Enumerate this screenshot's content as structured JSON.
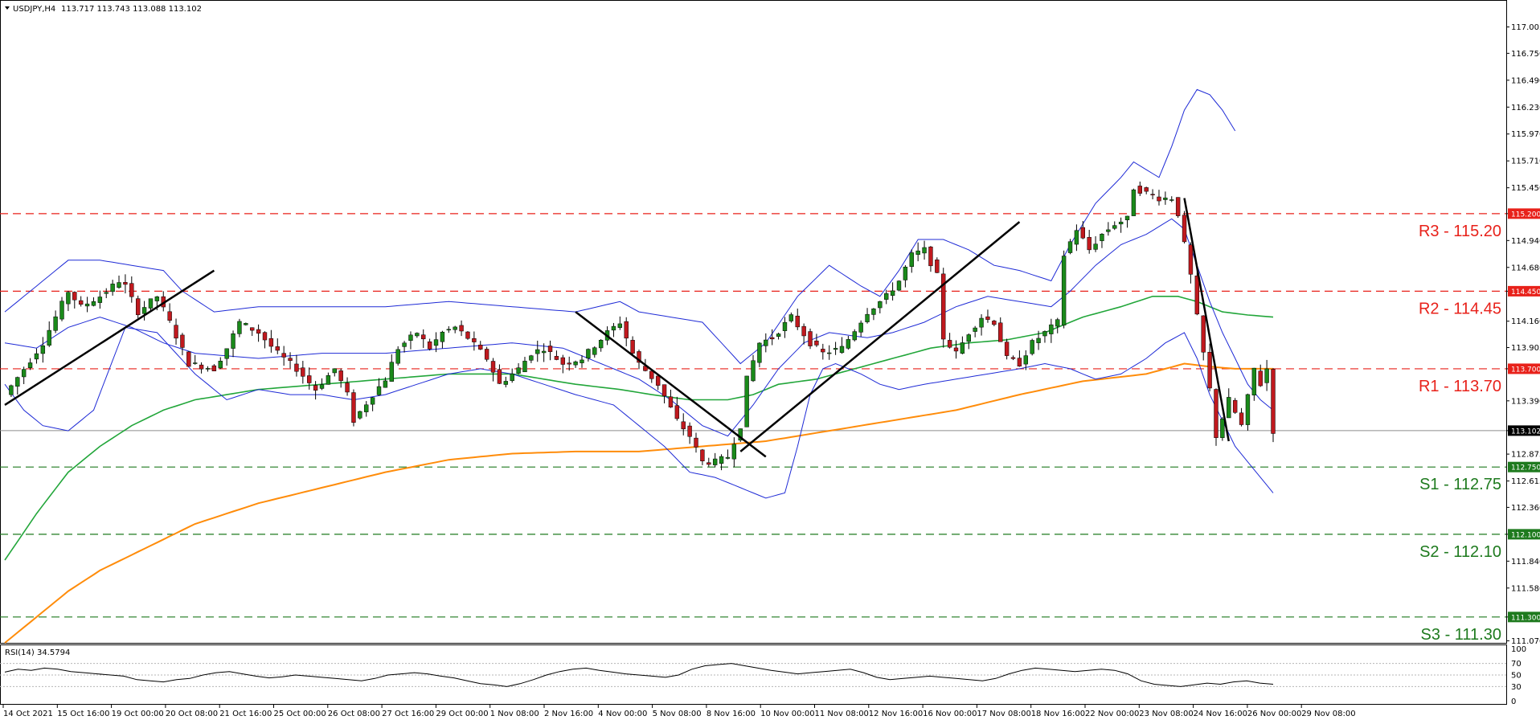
{
  "header": {
    "symbol": "USDJPY,H4",
    "ohlc": "113.717 113.743 113.088 113.102"
  },
  "rsi_header": "RSI(14) 34.5794",
  "current_price_tag": "113.102",
  "levels": [
    {
      "name": "R3",
      "label": "R3 - 115.20",
      "tag": "115.200",
      "value": 115.2,
      "color": "#e8211a"
    },
    {
      "name": "R2",
      "label": "R2 - 114.45",
      "tag": "114.450",
      "value": 114.45,
      "color": "#e8211a"
    },
    {
      "name": "R1",
      "label": "R1 - 113.70",
      "tag": "113.700",
      "value": 113.7,
      "color": "#e8211a"
    },
    {
      "name": "S1",
      "label": "S1 - 112.75",
      "tag": "112.750",
      "value": 112.75,
      "color": "#1e7a1e"
    },
    {
      "name": "S2",
      "label": "S2 - 112.10",
      "tag": "112.100",
      "value": 112.1,
      "color": "#1e7a1e"
    },
    {
      "name": "S3",
      "label": "S3 - 111.30",
      "tag": "111.300",
      "value": 111.3,
      "color": "#1e7a1e"
    }
  ],
  "colors": {
    "bull_candle": "#1a8a1a",
    "bear_candle": "#c0191e",
    "bollinger": "#1f2bd6",
    "ma_green": "#22a63a",
    "ma_orange": "#ff8c0a",
    "trendline": "#000000",
    "rsi_line": "#000000"
  },
  "chart_data": [
    {
      "type": "candlestick",
      "symbol": "USDJPY",
      "timeframe": "H4",
      "ylim": [
        111.05,
        117.25
      ],
      "y_ticks": [
        "117.005",
        "116.750",
        "116.490",
        "116.230",
        "115.970",
        "115.710",
        "115.450",
        "115.200",
        "114.940",
        "114.680",
        "114.450",
        "114.160",
        "113.905",
        "113.700",
        "113.390",
        "113.102",
        "112.875",
        "112.615",
        "112.360",
        "112.100",
        "111.840",
        "111.580",
        "111.300",
        "111.070"
      ],
      "x_ticks": [
        "14 Oct 2021",
        "15 Oct 16:00",
        "19 Oct 00:00",
        "20 Oct 08:00",
        "21 Oct 16:00",
        "25 Oct 00:00",
        "26 Oct 08:00",
        "27 Oct 16:00",
        "29 Oct 00:00",
        "1 Nov 08:00",
        "2 Nov 16:00",
        "4 Nov 00:00",
        "5 Nov 08:00",
        "8 Nov 16:00",
        "10 Nov 00:00",
        "11 Nov 08:00",
        "12 Nov 16:00",
        "16 Nov 00:00",
        "17 Nov 08:00",
        "18 Nov 16:00",
        "22 Nov 00:00",
        "23 Nov 08:00",
        "24 Nov 16:00",
        "26 Nov 00:00",
        "29 Nov 08:00"
      ],
      "price_path": [
        [
          0,
          113.45
        ],
        [
          6,
          113.95
        ],
        [
          10,
          114.45
        ],
        [
          12,
          114.3
        ],
        [
          15,
          114.4
        ],
        [
          18,
          114.55
        ],
        [
          19,
          114.5
        ],
        [
          21,
          114.25
        ],
        [
          24,
          114.4
        ],
        [
          26,
          114.15
        ],
        [
          29,
          113.75
        ],
        [
          33,
          113.7
        ],
        [
          35,
          113.9
        ],
        [
          37,
          114.15
        ],
        [
          40,
          114.05
        ],
        [
          43,
          113.85
        ],
        [
          46,
          113.7
        ],
        [
          49,
          113.5
        ],
        [
          52,
          113.7
        ],
        [
          54,
          113.45
        ],
        [
          55,
          113.2
        ],
        [
          58,
          113.45
        ],
        [
          60,
          113.6
        ],
        [
          62,
          113.9
        ],
        [
          65,
          114.05
        ],
        [
          67,
          113.9
        ],
        [
          69,
          114.05
        ],
        [
          71,
          114.1
        ],
        [
          73,
          114.0
        ],
        [
          76,
          113.8
        ],
        [
          78,
          113.55
        ],
        [
          81,
          113.7
        ],
        [
          83,
          113.85
        ],
        [
          85,
          113.9
        ],
        [
          88,
          113.75
        ],
        [
          91,
          113.8
        ],
        [
          95,
          114.05
        ],
        [
          97,
          114.15
        ],
        [
          99,
          113.85
        ],
        [
          100,
          113.75
        ],
        [
          103,
          113.55
        ],
        [
          106,
          113.2
        ],
        [
          108,
          113.05
        ],
        [
          110,
          112.8
        ],
        [
          112,
          112.8
        ],
        [
          114,
          112.85
        ],
        [
          116,
          113.15
        ],
        [
          117,
          113.6
        ],
        [
          119,
          113.95
        ],
        [
          121,
          114.0
        ],
        [
          124,
          114.2
        ],
        [
          127,
          113.95
        ],
        [
          129,
          113.85
        ],
        [
          132,
          113.9
        ],
        [
          136,
          114.25
        ],
        [
          139,
          114.4
        ],
        [
          141,
          114.55
        ],
        [
          143,
          114.8
        ],
        [
          145,
          114.85
        ],
        [
          147,
          114.6
        ],
        [
          148,
          114.0
        ],
        [
          150,
          113.85
        ],
        [
          152,
          114.05
        ],
        [
          154,
          114.2
        ],
        [
          156,
          114.15
        ],
        [
          158,
          113.8
        ],
        [
          160,
          113.75
        ],
        [
          162,
          113.95
        ],
        [
          164,
          114.05
        ],
        [
          166,
          114.15
        ],
        [
          167,
          114.8
        ],
        [
          169,
          115.05
        ],
        [
          171,
          114.85
        ],
        [
          173,
          115.0
        ],
        [
          175,
          115.1
        ],
        [
          177,
          115.15
        ],
        [
          178,
          115.45
        ],
        [
          180,
          115.4
        ],
        [
          182,
          115.35
        ],
        [
          184,
          115.35
        ],
        [
          185,
          115.2
        ],
        [
          187,
          114.6
        ],
        [
          188,
          114.2
        ],
        [
          190,
          113.5
        ],
        [
          191,
          113.05
        ],
        [
          193,
          113.4
        ],
        [
          195,
          113.15
        ],
        [
          197,
          113.7
        ],
        [
          198,
          113.55
        ],
        [
          199,
          113.7
        ],
        [
          200,
          113.1
        ]
      ],
      "bollinger_upper": [
        [
          0,
          114.25
        ],
        [
          5,
          114.5
        ],
        [
          10,
          114.75
        ],
        [
          15,
          114.75
        ],
        [
          20,
          114.7
        ],
        [
          25,
          114.65
        ],
        [
          28,
          114.45
        ],
        [
          33,
          114.25
        ],
        [
          40,
          114.3
        ],
        [
          50,
          114.3
        ],
        [
          60,
          114.3
        ],
        [
          70,
          114.35
        ],
        [
          80,
          114.3
        ],
        [
          90,
          114.25
        ],
        [
          97,
          114.35
        ],
        [
          100,
          114.25
        ],
        [
          105,
          114.2
        ],
        [
          110,
          114.15
        ],
        [
          113,
          113.95
        ],
        [
          116,
          113.75
        ],
        [
          120,
          113.95
        ],
        [
          125,
          114.4
        ],
        [
          130,
          114.7
        ],
        [
          135,
          114.5
        ],
        [
          138,
          114.4
        ],
        [
          141,
          114.65
        ],
        [
          144,
          114.95
        ],
        [
          148,
          114.95
        ],
        [
          152,
          114.85
        ],
        [
          156,
          114.7
        ],
        [
          160,
          114.65
        ],
        [
          165,
          114.55
        ],
        [
          168,
          114.9
        ],
        [
          172,
          115.3
        ],
        [
          176,
          115.55
        ],
        [
          178,
          115.7
        ],
        [
          182,
          115.55
        ],
        [
          184,
          115.85
        ],
        [
          186,
          116.2
        ],
        [
          188,
          116.4
        ],
        [
          190,
          116.35
        ],
        [
          192,
          116.2
        ],
        [
          194,
          116.0
        ]
      ],
      "bollinger_lower": [
        [
          0,
          113.55
        ],
        [
          3,
          113.3
        ],
        [
          6,
          113.15
        ],
        [
          10,
          113.1
        ],
        [
          14,
          113.3
        ],
        [
          19,
          114.1
        ],
        [
          24,
          114.05
        ],
        [
          30,
          113.65
        ],
        [
          35,
          113.4
        ],
        [
          40,
          113.5
        ],
        [
          45,
          113.45
        ],
        [
          50,
          113.45
        ],
        [
          55,
          113.4
        ],
        [
          60,
          113.45
        ],
        [
          65,
          113.55
        ],
        [
          70,
          113.65
        ],
        [
          75,
          113.7
        ],
        [
          80,
          113.65
        ],
        [
          85,
          113.55
        ],
        [
          90,
          113.45
        ],
        [
          96,
          113.35
        ],
        [
          100,
          113.15
        ],
        [
          104,
          112.95
        ],
        [
          108,
          112.7
        ],
        [
          112,
          112.65
        ],
        [
          116,
          112.55
        ],
        [
          120,
          112.45
        ],
        [
          123,
          112.5
        ],
        [
          125,
          112.95
        ],
        [
          127,
          113.45
        ],
        [
          129,
          113.7
        ],
        [
          131,
          113.75
        ],
        [
          135,
          113.65
        ],
        [
          138,
          113.55
        ],
        [
          141,
          113.5
        ],
        [
          145,
          113.55
        ],
        [
          150,
          113.6
        ],
        [
          155,
          113.65
        ],
        [
          160,
          113.7
        ],
        [
          164,
          113.75
        ],
        [
          168,
          113.7
        ],
        [
          172,
          113.6
        ],
        [
          176,
          113.65
        ],
        [
          180,
          113.8
        ],
        [
          183,
          113.95
        ],
        [
          186,
          114.05
        ],
        [
          188,
          113.8
        ],
        [
          190,
          113.45
        ],
        [
          192,
          113.2
        ],
        [
          194,
          112.95
        ],
        [
          196,
          112.8
        ],
        [
          198,
          112.65
        ],
        [
          200,
          112.5
        ]
      ],
      "bollinger_mid": [
        [
          0,
          113.95
        ],
        [
          5,
          113.9
        ],
        [
          10,
          114.1
        ],
        [
          15,
          114.2
        ],
        [
          20,
          114.1
        ],
        [
          25,
          113.95
        ],
        [
          30,
          113.85
        ],
        [
          40,
          113.8
        ],
        [
          50,
          113.85
        ],
        [
          60,
          113.85
        ],
        [
          70,
          113.9
        ],
        [
          80,
          113.95
        ],
        [
          88,
          113.9
        ],
        [
          96,
          113.7
        ],
        [
          100,
          113.6
        ],
        [
          105,
          113.4
        ],
        [
          110,
          113.15
        ],
        [
          114,
          113.05
        ],
        [
          118,
          113.35
        ],
        [
          122,
          113.7
        ],
        [
          126,
          113.95
        ],
        [
          130,
          114.05
        ],
        [
          136,
          114.0
        ],
        [
          140,
          114.05
        ],
        [
          145,
          114.15
        ],
        [
          150,
          114.3
        ],
        [
          155,
          114.4
        ],
        [
          160,
          114.35
        ],
        [
          165,
          114.3
        ],
        [
          168,
          114.45
        ],
        [
          172,
          114.7
        ],
        [
          176,
          114.9
        ],
        [
          180,
          115.0
        ],
        [
          184,
          115.15
        ],
        [
          186,
          115.05
        ],
        [
          188,
          114.7
        ],
        [
          190,
          114.35
        ],
        [
          192,
          114.05
        ],
        [
          194,
          113.8
        ],
        [
          196,
          113.55
        ],
        [
          198,
          113.4
        ],
        [
          200,
          113.3
        ]
      ],
      "ma_green": [
        [
          0,
          111.85
        ],
        [
          5,
          112.3
        ],
        [
          10,
          112.7
        ],
        [
          15,
          112.95
        ],
        [
          20,
          113.15
        ],
        [
          25,
          113.3
        ],
        [
          30,
          113.4
        ],
        [
          40,
          113.5
        ],
        [
          50,
          113.55
        ],
        [
          60,
          113.6
        ],
        [
          70,
          113.65
        ],
        [
          80,
          113.65
        ],
        [
          90,
          113.55
        ],
        [
          97,
          113.5
        ],
        [
          102,
          113.45
        ],
        [
          108,
          113.4
        ],
        [
          114,
          113.4
        ],
        [
          118,
          113.45
        ],
        [
          122,
          113.55
        ],
        [
          128,
          113.6
        ],
        [
          134,
          113.7
        ],
        [
          140,
          113.8
        ],
        [
          146,
          113.9
        ],
        [
          152,
          113.95
        ],
        [
          158,
          113.98
        ],
        [
          164,
          114.05
        ],
        [
          170,
          114.2
        ],
        [
          176,
          114.3
        ],
        [
          181,
          114.4
        ],
        [
          185,
          114.4
        ],
        [
          188,
          114.35
        ],
        [
          192,
          114.25
        ],
        [
          196,
          114.22
        ],
        [
          200,
          114.2
        ]
      ],
      "ma_orange": [
        [
          0,
          111.05
        ],
        [
          5,
          111.3
        ],
        [
          10,
          111.55
        ],
        [
          15,
          111.75
        ],
        [
          20,
          111.9
        ],
        [
          25,
          112.05
        ],
        [
          30,
          112.2
        ],
        [
          40,
          112.4
        ],
        [
          50,
          112.55
        ],
        [
          60,
          112.7
        ],
        [
          70,
          112.82
        ],
        [
          80,
          112.88
        ],
        [
          90,
          112.9
        ],
        [
          100,
          112.9
        ],
        [
          110,
          112.95
        ],
        [
          120,
          113.0
        ],
        [
          130,
          113.1
        ],
        [
          140,
          113.2
        ],
        [
          150,
          113.3
        ],
        [
          160,
          113.45
        ],
        [
          170,
          113.58
        ],
        [
          180,
          113.65
        ],
        [
          186,
          113.75
        ],
        [
          190,
          113.72
        ],
        [
          194,
          113.7
        ],
        [
          200,
          113.7
        ]
      ],
      "trendlines": [
        {
          "from": [
            0,
            113.35
          ],
          "to": [
            33,
            114.65
          ]
        },
        {
          "from": [
            90,
            114.25
          ],
          "to": [
            120,
            112.85
          ]
        },
        {
          "from": [
            116,
            112.9
          ],
          "to": [
            160,
            115.12
          ]
        },
        {
          "from": [
            186,
            115.35
          ],
          "to": [
            193,
            113.0
          ]
        }
      ]
    },
    {
      "type": "line",
      "name": "RSI(14)",
      "ylim": [
        0,
        100
      ],
      "y_ticks": [
        "100",
        "70",
        "50",
        "30",
        "0"
      ],
      "values": [
        55,
        60,
        58,
        62,
        60,
        56,
        54,
        52,
        50,
        48,
        42,
        40,
        38,
        42,
        44,
        50,
        54,
        56,
        52,
        48,
        45,
        47,
        50,
        48,
        46,
        44,
        42,
        40,
        44,
        50,
        52,
        54,
        52,
        48,
        45,
        40,
        35,
        33,
        30,
        35,
        42,
        50,
        56,
        60,
        62,
        58,
        55,
        52,
        50,
        48,
        46,
        50,
        60,
        66,
        68,
        70,
        66,
        62,
        58,
        55,
        52,
        54,
        56,
        58,
        60,
        54,
        46,
        42,
        44,
        46,
        48,
        46,
        44,
        42,
        40,
        44,
        52,
        58,
        62,
        60,
        58,
        56,
        58,
        60,
        58,
        52,
        40,
        34,
        32,
        30,
        33,
        36,
        34,
        38,
        40,
        36,
        34
      ]
    }
  ]
}
